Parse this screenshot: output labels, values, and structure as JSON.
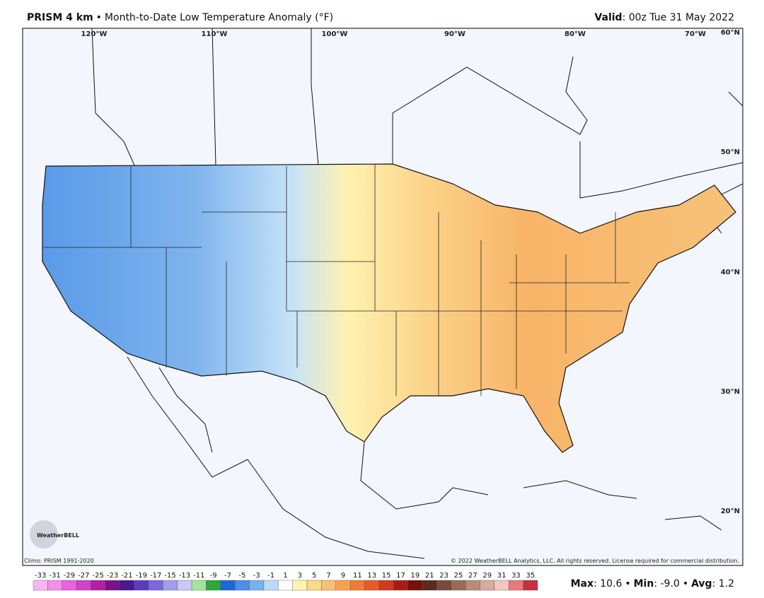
{
  "header": {
    "product": "PRISM 4 km",
    "separator": "•",
    "description": "Month-to-Date Low Temperature Anomaly (°F)",
    "valid_label": "Valid",
    "valid_text": ": 00z Tue 31 May 2022"
  },
  "map": {
    "longitude_labels": [
      "120°W",
      "110°W",
      "100°W",
      "90°W",
      "80°W",
      "70°W"
    ],
    "latitude_labels": [
      "60°N",
      "50°N",
      "40°N",
      "30°N",
      "20°N"
    ],
    "logo": "WeatherBELL",
    "climo": "Climo: PRISM 1991-2020",
    "copyright": "© 2022 WeatherBELL Analytics, LLC. All rights reserved. License required for commercial distribution."
  },
  "legend": {
    "ticks": [
      -33,
      -31,
      -29,
      -27,
      -25,
      -23,
      -21,
      -19,
      -17,
      -15,
      -13,
      -11,
      -9,
      -7,
      -5,
      -3,
      -1,
      1,
      3,
      5,
      7,
      9,
      11,
      13,
      15,
      17,
      19,
      21,
      23,
      25,
      27,
      29,
      31,
      33,
      35
    ],
    "colors": [
      "#f9b4f4",
      "#f48ded",
      "#e963e0",
      "#d43fcc",
      "#b020a8",
      "#80108a",
      "#4a1890",
      "#5a3cc0",
      "#7a68dc",
      "#a29cec",
      "#cac8f6",
      "#9fe69a",
      "#2fa83a",
      "#1f66d6",
      "#4c8ee8",
      "#7ab0f0",
      "#b8dcf8",
      "#ffffff",
      "#fff4b0",
      "#ffd98a",
      "#fcbf6e",
      "#f9a050",
      "#f27a38",
      "#e85a2a",
      "#d03a1e",
      "#a81e14",
      "#7a0e0a",
      "#5a2a20",
      "#7a4a3a",
      "#9a6a5a",
      "#ba8a7a",
      "#d8aaa0",
      "#f0c8c0",
      "#e87a7a",
      "#c83040"
    ]
  },
  "stats": {
    "separator": "•",
    "items": [
      {
        "label": "Max",
        "text": ": 10.6"
      },
      {
        "label": "Min",
        "text": ": -9.0"
      },
      {
        "label": "Avg",
        "text": ": 1.2"
      }
    ]
  }
}
